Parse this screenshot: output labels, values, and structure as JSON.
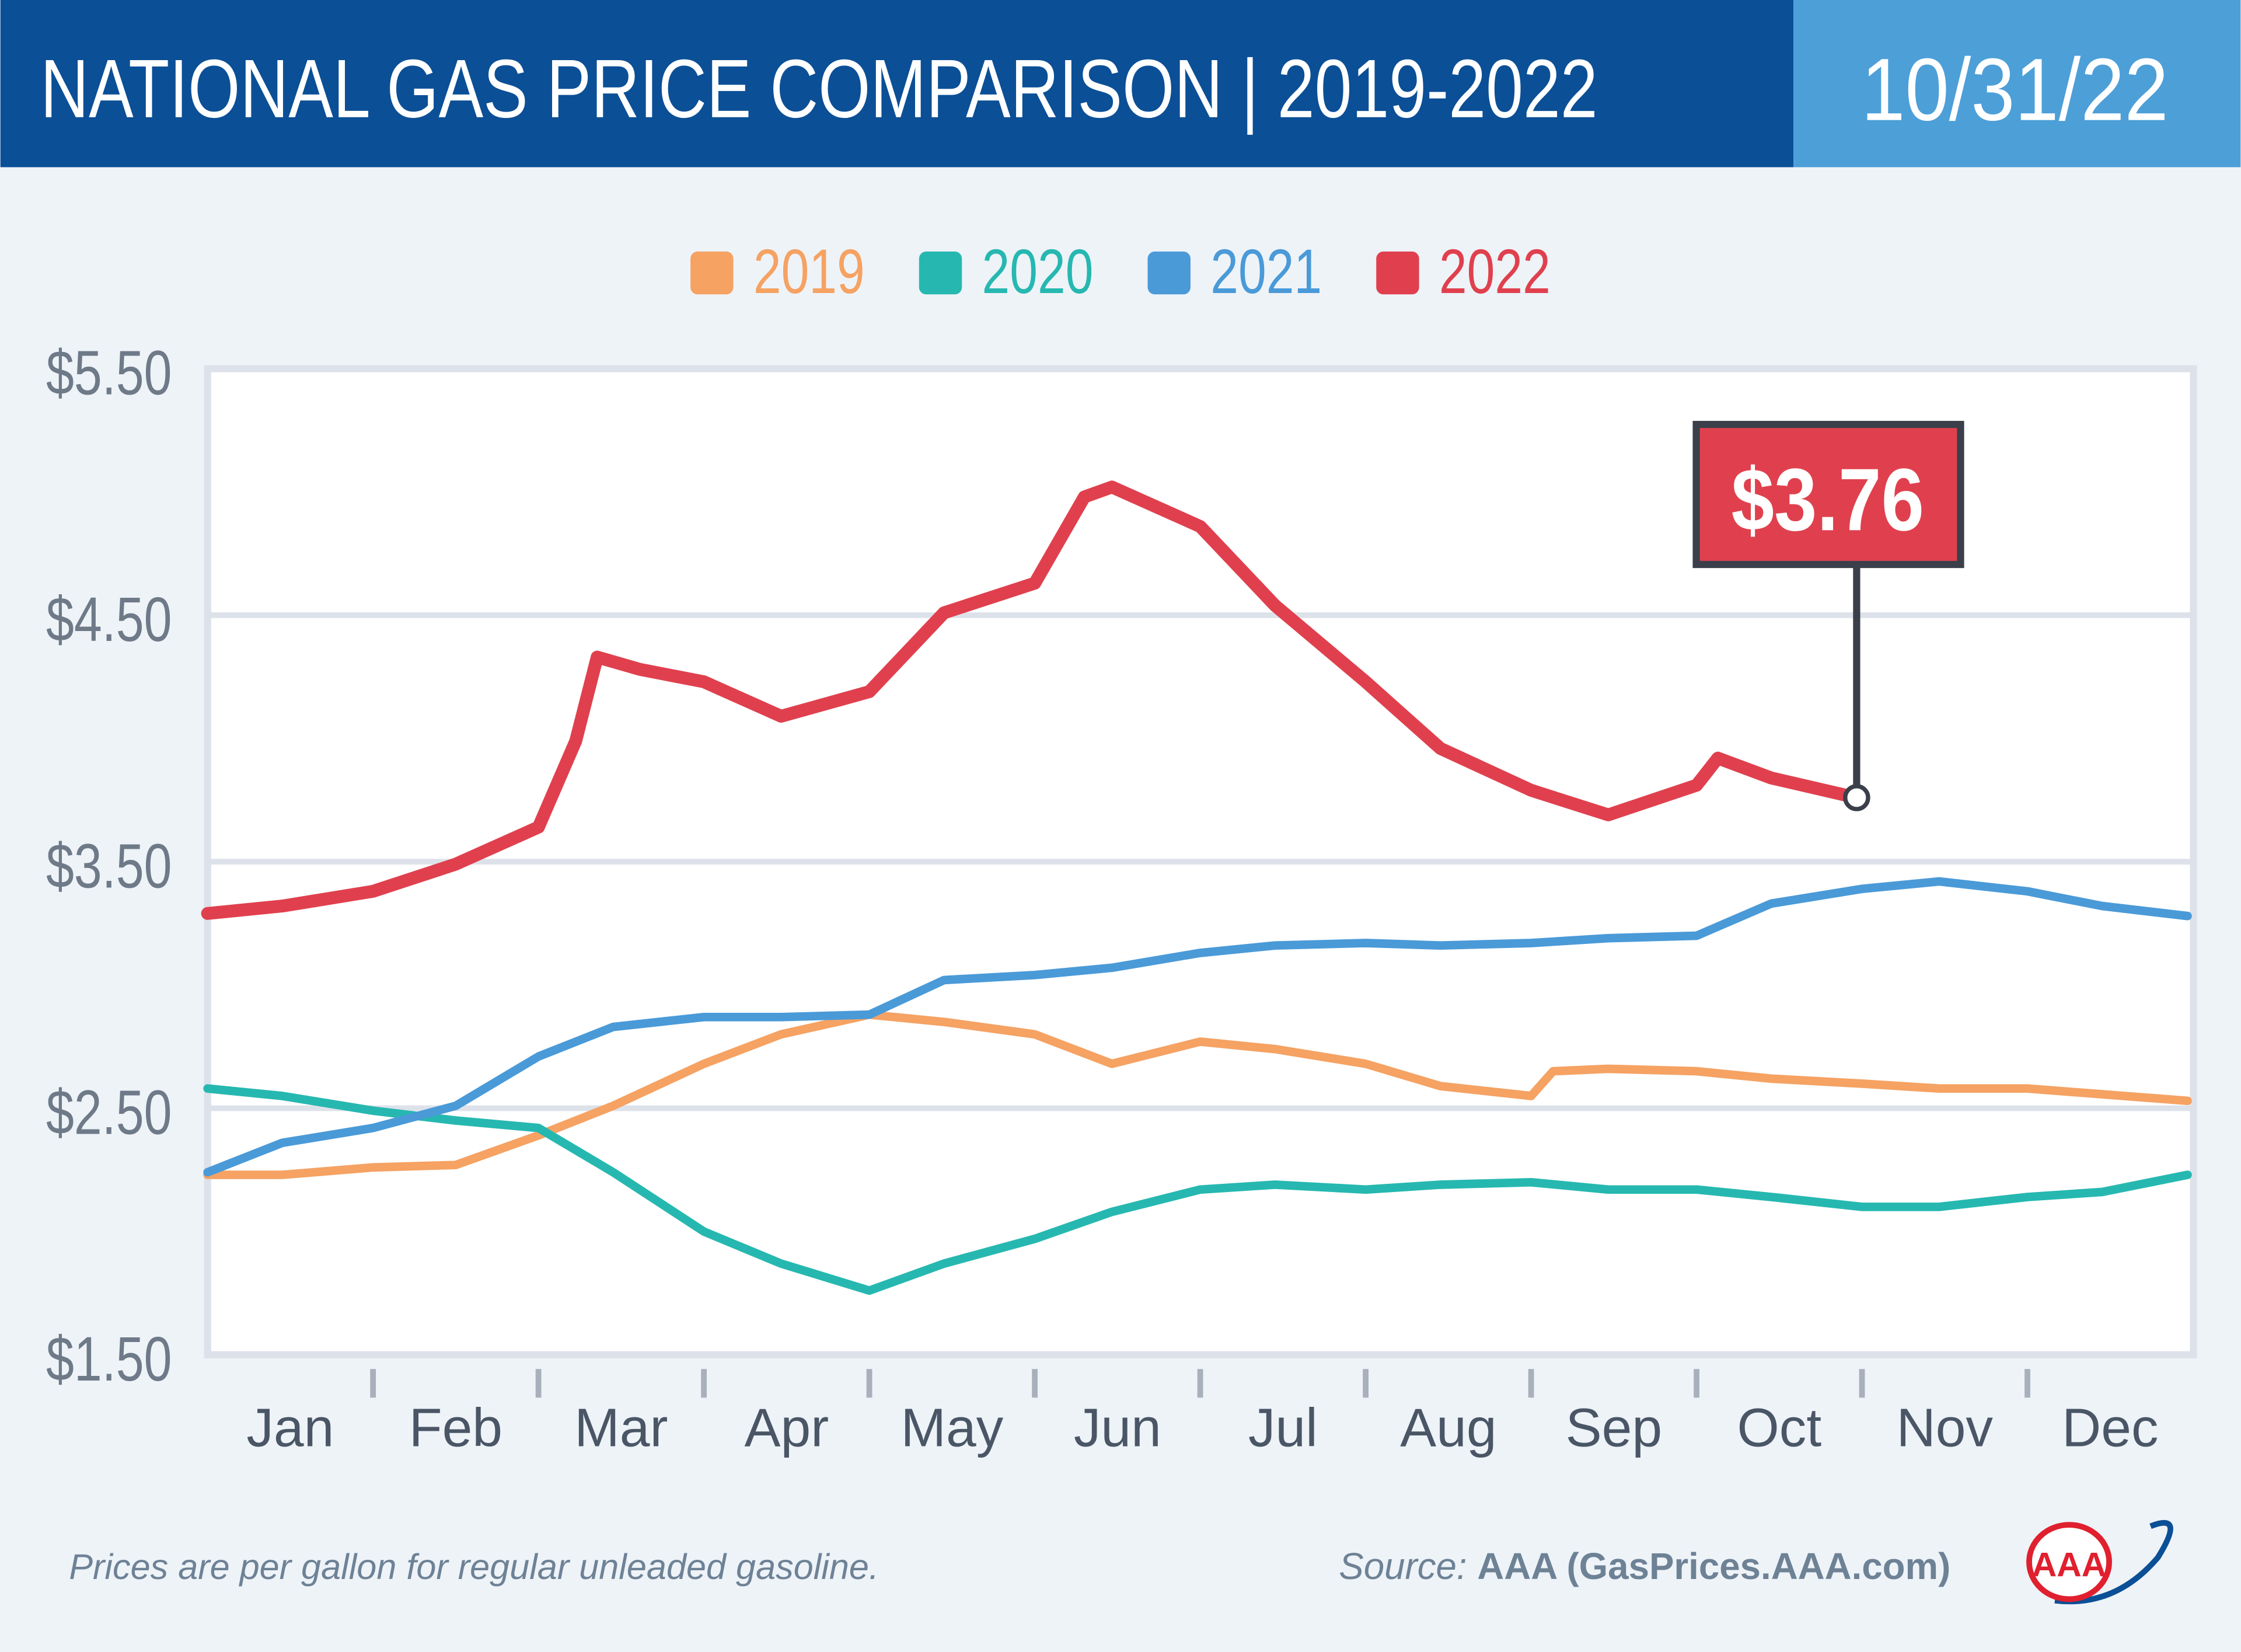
{
  "header": {
    "title": "NATIONAL GAS PRICE COMPARISON | 2019-2022",
    "date": "10/31/22"
  },
  "colors": {
    "header_bg": "#0b4f96",
    "date_bg": "#4d9fd8",
    "2019": "#f5a263",
    "2020": "#26b8b0",
    "2021": "#4a9ad8",
    "2022": "#e0404e"
  },
  "footer": {
    "note": "Prices are per gallon for regular unleaded gasoline.",
    "source_label": "Source:",
    "source": "AAA (GasPrices.AAA.com)",
    "logo_text": "AAA"
  },
  "chart_data": {
    "type": "line",
    "title": "NATIONAL GAS PRICE COMPARISON | 2019-2022",
    "xlabel": "",
    "ylabel": "",
    "x_ticks": [
      "Jan",
      "Feb",
      "Mar",
      "Apr",
      "May",
      "Jun",
      "Jul",
      "Aug",
      "Sep",
      "Oct",
      "Nov",
      "Dec"
    ],
    "y_ticks": [
      "$5.50",
      "$4.50",
      "$3.50",
      "$2.50",
      "$1.50"
    ],
    "ylim": [
      1.5,
      5.5
    ],
    "grid": "horizontal",
    "legend": "top-center",
    "annotation": {
      "label": "$3.76",
      "date": "10-31",
      "value": 3.76,
      "series": "2022"
    },
    "series": [
      {
        "name": "2019",
        "color": "#f5a263",
        "points": [
          [
            "01-01",
            2.23
          ],
          [
            "01-15",
            2.23
          ],
          [
            "02-01",
            2.26
          ],
          [
            "02-15",
            2.27
          ],
          [
            "03-01",
            2.39
          ],
          [
            "03-15",
            2.51
          ],
          [
            "04-01",
            2.68
          ],
          [
            "04-15",
            2.8
          ],
          [
            "05-01",
            2.88
          ],
          [
            "05-15",
            2.85
          ],
          [
            "06-01",
            2.8
          ],
          [
            "06-15",
            2.68
          ],
          [
            "07-01",
            2.77
          ],
          [
            "07-15",
            2.74
          ],
          [
            "08-01",
            2.68
          ],
          [
            "08-15",
            2.59
          ],
          [
            "09-01",
            2.55
          ],
          [
            "09-05",
            2.65
          ],
          [
            "09-15",
            2.66
          ],
          [
            "10-01",
            2.65
          ],
          [
            "10-15",
            2.62
          ],
          [
            "11-01",
            2.6
          ],
          [
            "11-15",
            2.58
          ],
          [
            "12-01",
            2.58
          ],
          [
            "12-31",
            2.53
          ]
        ]
      },
      {
        "name": "2020",
        "color": "#26b8b0",
        "points": [
          [
            "01-01",
            2.58
          ],
          [
            "01-15",
            2.55
          ],
          [
            "02-01",
            2.49
          ],
          [
            "02-15",
            2.45
          ],
          [
            "03-01",
            2.42
          ],
          [
            "03-15",
            2.24
          ],
          [
            "04-01",
            2.0
          ],
          [
            "04-15",
            1.87
          ],
          [
            "05-01",
            1.76
          ],
          [
            "05-15",
            1.87
          ],
          [
            "06-01",
            1.97
          ],
          [
            "06-15",
            2.08
          ],
          [
            "07-01",
            2.17
          ],
          [
            "07-15",
            2.19
          ],
          [
            "08-01",
            2.17
          ],
          [
            "08-15",
            2.19
          ],
          [
            "09-01",
            2.2
          ],
          [
            "09-15",
            2.17
          ],
          [
            "10-01",
            2.17
          ],
          [
            "10-15",
            2.14
          ],
          [
            "11-01",
            2.1
          ],
          [
            "11-15",
            2.1
          ],
          [
            "12-01",
            2.14
          ],
          [
            "12-15",
            2.16
          ],
          [
            "12-31",
            2.23
          ]
        ]
      },
      {
        "name": "2021",
        "color": "#4a9ad8",
        "points": [
          [
            "01-01",
            2.24
          ],
          [
            "01-15",
            2.36
          ],
          [
            "02-01",
            2.42
          ],
          [
            "02-15",
            2.51
          ],
          [
            "03-01",
            2.71
          ],
          [
            "03-15",
            2.83
          ],
          [
            "04-01",
            2.87
          ],
          [
            "04-15",
            2.87
          ],
          [
            "05-01",
            2.88
          ],
          [
            "05-15",
            3.02
          ],
          [
            "06-01",
            3.04
          ],
          [
            "06-15",
            3.07
          ],
          [
            "07-01",
            3.13
          ],
          [
            "07-15",
            3.16
          ],
          [
            "08-01",
            3.17
          ],
          [
            "08-15",
            3.16
          ],
          [
            "09-01",
            3.17
          ],
          [
            "09-15",
            3.19
          ],
          [
            "10-01",
            3.2
          ],
          [
            "10-15",
            3.33
          ],
          [
            "11-01",
            3.39
          ],
          [
            "11-15",
            3.42
          ],
          [
            "12-01",
            3.38
          ],
          [
            "12-15",
            3.32
          ],
          [
            "12-31",
            3.28
          ]
        ]
      },
      {
        "name": "2022",
        "color": "#e0404e",
        "points": [
          [
            "01-01",
            3.29
          ],
          [
            "01-15",
            3.32
          ],
          [
            "02-01",
            3.38
          ],
          [
            "02-15",
            3.49
          ],
          [
            "03-01",
            3.64
          ],
          [
            "03-08",
            3.99
          ],
          [
            "03-12",
            4.33
          ],
          [
            "03-20",
            4.28
          ],
          [
            "04-01",
            4.23
          ],
          [
            "04-15",
            4.09
          ],
          [
            "05-01",
            4.19
          ],
          [
            "05-15",
            4.51
          ],
          [
            "06-01",
            4.63
          ],
          [
            "06-10",
            4.98
          ],
          [
            "06-15",
            5.02
          ],
          [
            "07-01",
            4.86
          ],
          [
            "07-15",
            4.54
          ],
          [
            "08-01",
            4.23
          ],
          [
            "08-15",
            3.96
          ],
          [
            "09-01",
            3.79
          ],
          [
            "09-15",
            3.69
          ],
          [
            "10-01",
            3.81
          ],
          [
            "10-05",
            3.92
          ],
          [
            "10-15",
            3.84
          ],
          [
            "10-31",
            3.76
          ]
        ]
      }
    ]
  }
}
